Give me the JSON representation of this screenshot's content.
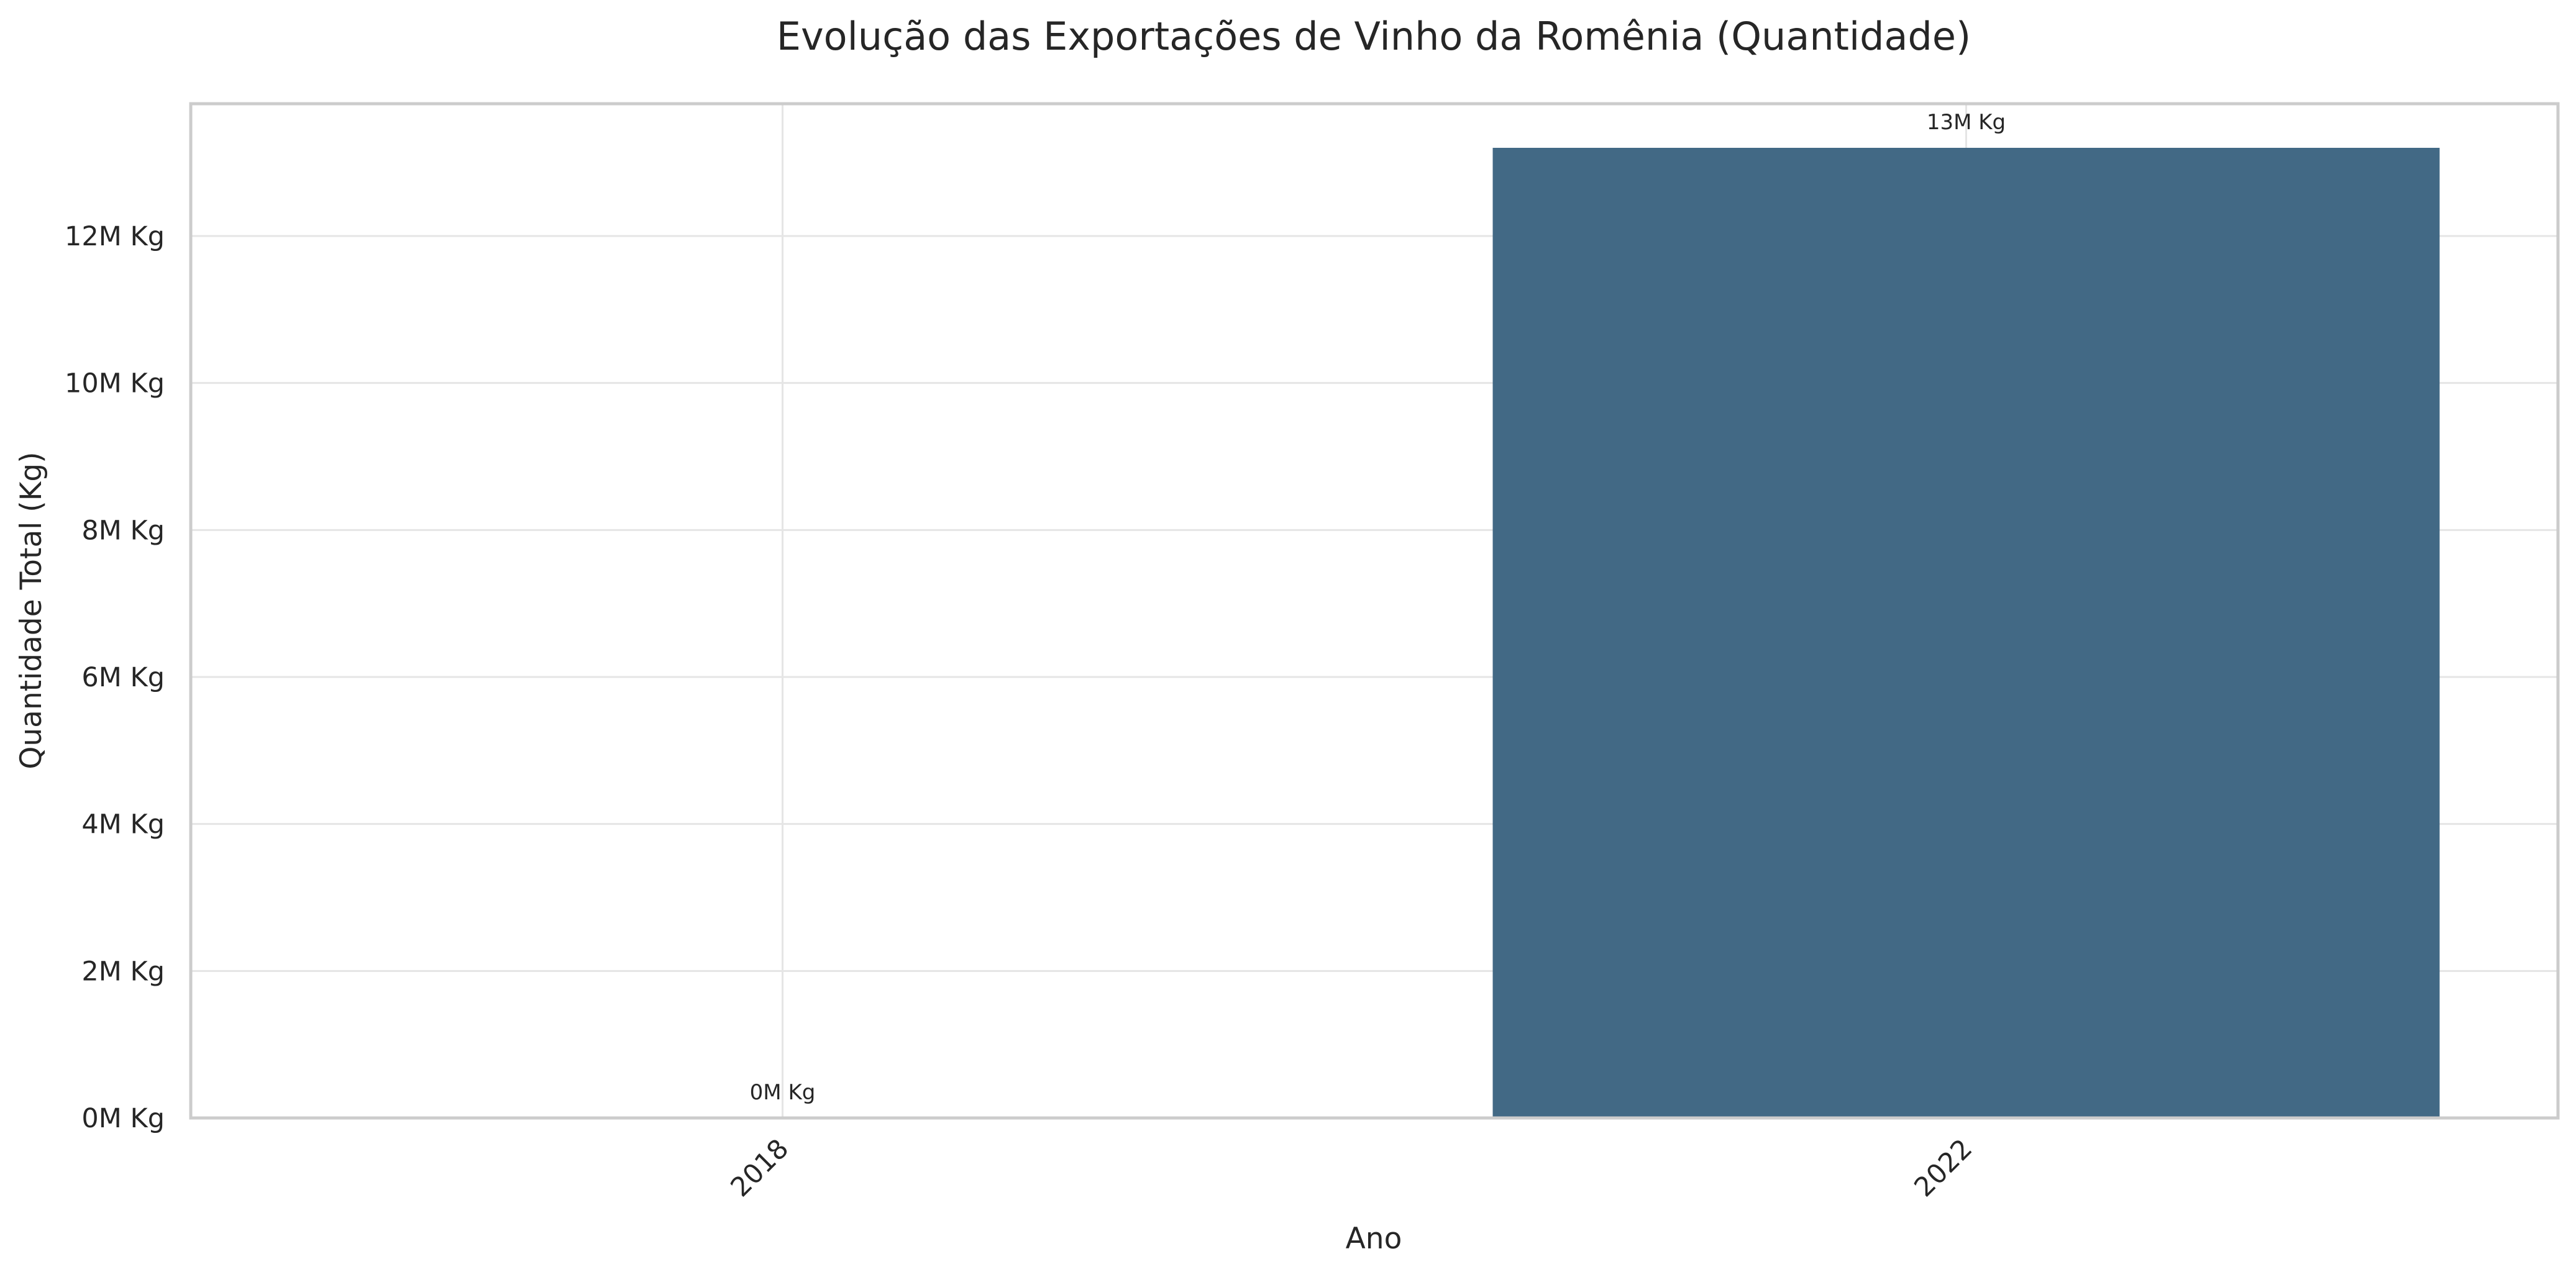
{
  "chart_data": {
    "type": "bar",
    "title": "Evolução das Exportações de Vinho da Romênia (Quantidade)",
    "xlabel": "Ano",
    "ylabel": "Quantidade Total (Kg)",
    "categories": [
      "2018",
      "2022"
    ],
    "values": [
      0,
      13200000
    ],
    "data_labels": [
      "0M Kg",
      "13M Kg"
    ],
    "ylim": [
      0,
      13800000
    ],
    "yticks": [
      0,
      2000000,
      4000000,
      6000000,
      8000000,
      10000000,
      12000000
    ],
    "ytick_labels": [
      "0M Kg",
      "2M Kg",
      "4M Kg",
      "6M Kg",
      "8M Kg",
      "10M Kg",
      "12M Kg"
    ],
    "grid": true,
    "bar_color": "#426985",
    "legend": "none"
  }
}
